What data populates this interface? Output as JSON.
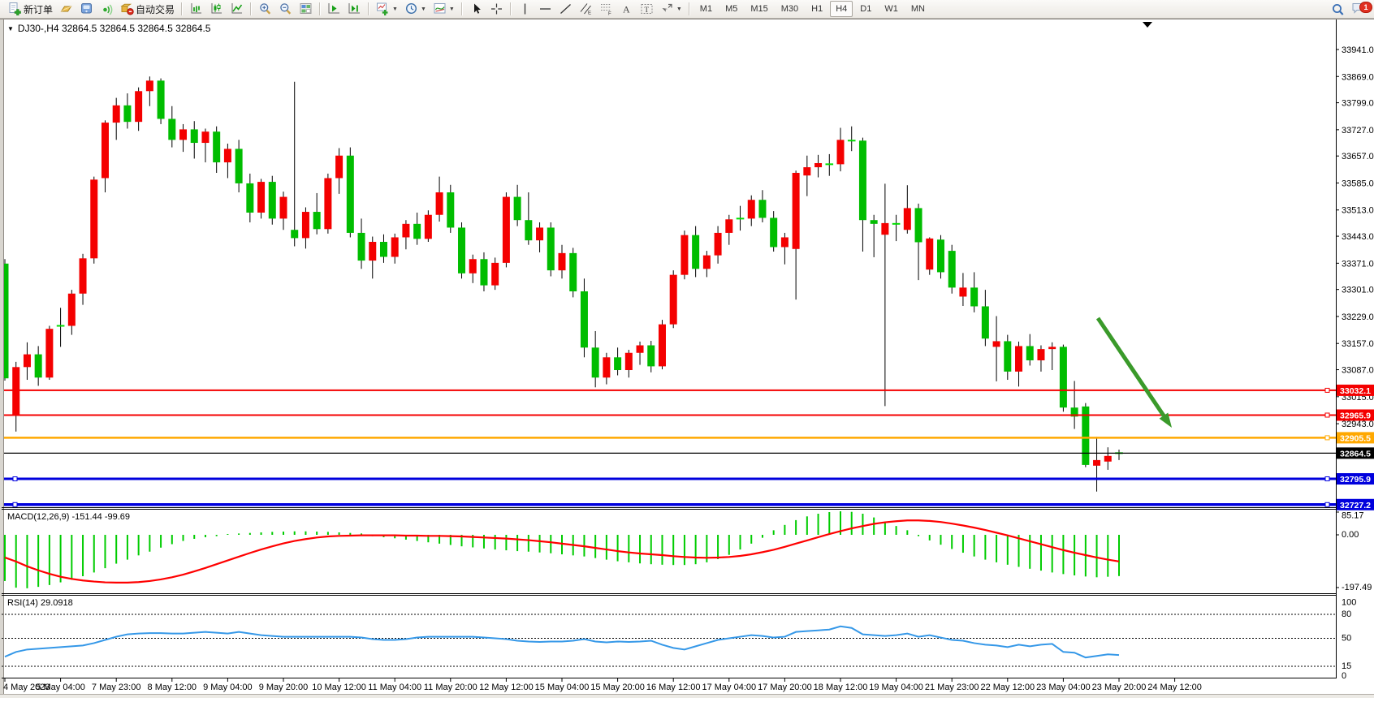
{
  "toolbar": {
    "groups": [
      {
        "items": [
          {
            "icon": "new-order",
            "label": "新订单"
          },
          {
            "icon": "gold-bar"
          },
          {
            "icon": "terminal"
          },
          {
            "icon": "signal"
          },
          {
            "icon": "autotrade",
            "label": "自动交易"
          }
        ]
      },
      {
        "items": [
          {
            "icon": "bars-chart"
          },
          {
            "icon": "candles-chart"
          },
          {
            "icon": "line-chart"
          }
        ]
      },
      {
        "items": [
          {
            "icon": "zoom-in"
          },
          {
            "icon": "zoom-out"
          },
          {
            "icon": "tile-windows"
          }
        ]
      },
      {
        "items": [
          {
            "icon": "chart-forward"
          },
          {
            "icon": "chart-shift"
          }
        ]
      },
      {
        "items": [
          {
            "icon": "new-chart",
            "dropdown": true
          },
          {
            "icon": "period",
            "dropdown": true
          },
          {
            "icon": "template",
            "dropdown": true
          }
        ]
      },
      {
        "items": [
          {
            "icon": "cursor"
          },
          {
            "icon": "crosshair"
          }
        ]
      },
      {
        "items": [
          {
            "icon": "vline"
          },
          {
            "icon": "hline"
          },
          {
            "icon": "trendline"
          },
          {
            "icon": "channel"
          },
          {
            "icon": "fibo"
          },
          {
            "icon": "text"
          },
          {
            "icon": "label"
          },
          {
            "icon": "arrows",
            "dropdown": true
          }
        ]
      },
      {
        "type": "timeframes",
        "items": [
          "M1",
          "M5",
          "M15",
          "M30",
          "H1",
          "H4",
          "D1",
          "W1",
          "MN"
        ],
        "active": "H4"
      }
    ],
    "right": [
      {
        "icon": "search"
      },
      {
        "icon": "chat",
        "badge": "1"
      }
    ]
  },
  "chart": {
    "title": "DJ30-,H4  32864.5 32864.5 32864.5 32864.5",
    "macd_label": "MACD(12,26,9) -151.44 -99.69",
    "rsi_label": "RSI(14) 29.0918"
  },
  "chart_data": {
    "type": "candlestick",
    "symbol": "DJ30-",
    "timeframe": "H4",
    "convention": "red = up candle, green = down candle (CN colors)",
    "price_axis": {
      "ticks": [
        33941.0,
        33869.0,
        33799.0,
        33727.0,
        33657.0,
        33585.0,
        33513.0,
        33443.0,
        33371.0,
        33301.0,
        33229.0,
        33157.0,
        33087.0,
        33015.0,
        32943.0
      ]
    },
    "current_price": {
      "value": 32864.5,
      "label": "32864.5",
      "badge_color": "#000000"
    },
    "hlines": [
      {
        "price": 33032.1,
        "label": "33032.1",
        "color": "#f40000",
        "width": 2,
        "left_handle": false
      },
      {
        "price": 32965.9,
        "label": "32965.9",
        "color": "#f40000",
        "width": 2,
        "left_handle": false
      },
      {
        "price": 32905.5,
        "label": "32905.5",
        "color": "#ffa800",
        "width": 2.5,
        "left_handle": false
      },
      {
        "price": 32795.9,
        "label": "32795.9",
        "color": "#0000dd",
        "width": 3,
        "left_handle": true
      },
      {
        "price": 32727.2,
        "label": "32727.2",
        "color": "#0000dd",
        "width": 3.5,
        "left_handle": true
      }
    ],
    "annotation_arrow": {
      "from": [
        1352,
        392
      ],
      "to": [
        1443,
        527
      ],
      "color": "#3a9a2a",
      "width": 5
    },
    "shift_marker_x": 1413,
    "time_axis": {
      "labels": [
        {
          "text": "4 May 2023",
          "i": 0
        },
        {
          "text": "5 May 04:00",
          "i": 5
        },
        {
          "text": "7 May 23:00",
          "i": 10
        },
        {
          "text": "8 May 12:00",
          "i": 15
        },
        {
          "text": "9 May 04:00",
          "i": 20
        },
        {
          "text": "9 May 20:00",
          "i": 25
        },
        {
          "text": "10 May 12:00",
          "i": 30
        },
        {
          "text": "11 May 04:00",
          "i": 35
        },
        {
          "text": "11 May 20:00",
          "i": 40
        },
        {
          "text": "12 May 12:00",
          "i": 45
        },
        {
          "text": "15 May 04:00",
          "i": 50
        },
        {
          "text": "15 May 20:00",
          "i": 55
        },
        {
          "text": "16 May 12:00",
          "i": 60
        },
        {
          "text": "17 May 04:00",
          "i": 65
        },
        {
          "text": "17 May 20:00",
          "i": 70
        },
        {
          "text": "18 May 12:00",
          "i": 75
        },
        {
          "text": "19 May 04:00",
          "i": 80
        },
        {
          "text": "21 May 23:00",
          "i": 85
        },
        {
          "text": "22 May 12:00",
          "i": 90
        },
        {
          "text": "23 May 04:00",
          "i": 95
        },
        {
          "text": "23 May 20:00",
          "i": 100
        },
        {
          "text": "24 May 12:00",
          "i": 105
        }
      ]
    },
    "candles": [
      [
        33370,
        33382,
        33058,
        33064
      ],
      [
        32965,
        33108,
        32922,
        33094
      ],
      [
        33094,
        33160,
        33060,
        33128
      ],
      [
        33128,
        33150,
        33044,
        33066
      ],
      [
        33066,
        33204,
        33060,
        33196
      ],
      [
        33200,
        33252,
        33148,
        33204
      ],
      [
        33204,
        33300,
        33180,
        33290
      ],
      [
        33290,
        33396,
        33260,
        33384
      ],
      [
        33384,
        33602,
        33370,
        33594
      ],
      [
        33598,
        33752,
        33560,
        33746
      ],
      [
        33746,
        33812,
        33700,
        33792
      ],
      [
        33792,
        33824,
        33730,
        33748
      ],
      [
        33748,
        33840,
        33724,
        33830
      ],
      [
        33830,
        33869,
        33790,
        33858
      ],
      [
        33858,
        33864,
        33742,
        33756
      ],
      [
        33756,
        33790,
        33680,
        33700
      ],
      [
        33700,
        33742,
        33668,
        33728
      ],
      [
        33728,
        33750,
        33650,
        33692
      ],
      [
        33692,
        33730,
        33640,
        33722
      ],
      [
        33722,
        33736,
        33612,
        33640
      ],
      [
        33640,
        33690,
        33598,
        33676
      ],
      [
        33676,
        33700,
        33560,
        33584
      ],
      [
        33584,
        33610,
        33480,
        33506
      ],
      [
        33506,
        33596,
        33490,
        33588
      ],
      [
        33588,
        33604,
        33474,
        33490
      ],
      [
        33490,
        33562,
        33460,
        33548
      ],
      [
        33460,
        33855,
        33416,
        33438
      ],
      [
        33438,
        33520,
        33410,
        33508
      ],
      [
        33508,
        33558,
        33448,
        33462
      ],
      [
        33462,
        33610,
        33450,
        33598
      ],
      [
        33598,
        33678,
        33556,
        33658
      ],
      [
        33658,
        33680,
        33440,
        33452
      ],
      [
        33452,
        33490,
        33356,
        33378
      ],
      [
        33378,
        33442,
        33330,
        33428
      ],
      [
        33428,
        33448,
        33372,
        33388
      ],
      [
        33388,
        33450,
        33370,
        33440
      ],
      [
        33440,
        33486,
        33408,
        33476
      ],
      [
        33476,
        33506,
        33420,
        33436
      ],
      [
        33436,
        33512,
        33428,
        33500
      ],
      [
        33500,
        33602,
        33482,
        33560
      ],
      [
        33560,
        33580,
        33452,
        33466
      ],
      [
        33466,
        33480,
        33330,
        33344
      ],
      [
        33344,
        33394,
        33318,
        33382
      ],
      [
        33382,
        33400,
        33296,
        33312
      ],
      [
        33312,
        33386,
        33300,
        33372
      ],
      [
        33372,
        33560,
        33360,
        33548
      ],
      [
        33548,
        33580,
        33470,
        33486
      ],
      [
        33486,
        33560,
        33420,
        33432
      ],
      [
        33432,
        33480,
        33400,
        33466
      ],
      [
        33466,
        33480,
        33336,
        33352
      ],
      [
        33352,
        33420,
        33330,
        33398
      ],
      [
        33398,
        33412,
        33280,
        33296
      ],
      [
        33296,
        33330,
        33120,
        33146
      ],
      [
        33146,
        33190,
        33040,
        33066
      ],
      [
        33066,
        33132,
        33048,
        33120
      ],
      [
        33120,
        33146,
        33072,
        33086
      ],
      [
        33086,
        33140,
        33066,
        33132
      ],
      [
        33132,
        33162,
        33100,
        33152
      ],
      [
        33152,
        33164,
        33080,
        33096
      ],
      [
        33096,
        33220,
        33088,
        33208
      ],
      [
        33208,
        33352,
        33198,
        33340
      ],
      [
        33340,
        33458,
        33328,
        33446
      ],
      [
        33446,
        33470,
        33334,
        33356
      ],
      [
        33356,
        33404,
        33334,
        33392
      ],
      [
        33392,
        33470,
        33370,
        33452
      ],
      [
        33452,
        33500,
        33420,
        33488
      ],
      [
        33488,
        33524,
        33458,
        33490
      ],
      [
        33490,
        33552,
        33470,
        33540
      ],
      [
        33540,
        33566,
        33480,
        33492
      ],
      [
        33492,
        33510,
        33402,
        33414
      ],
      [
        33414,
        33452,
        33368,
        33440
      ],
      [
        33409,
        33618,
        33274,
        33612
      ],
      [
        33605,
        33658,
        33550,
        33627
      ],
      [
        33627,
        33660,
        33600,
        33638
      ],
      [
        33637,
        33662,
        33604,
        33635
      ],
      [
        33635,
        33732,
        33616,
        33700
      ],
      [
        33700,
        33736,
        33670,
        33698
      ],
      [
        33698,
        33706,
        33402,
        33486
      ],
      [
        33486,
        33500,
        33387,
        33476
      ],
      [
        33447,
        33583,
        32990,
        33478
      ],
      [
        33478,
        33500,
        33430,
        33476
      ],
      [
        33460,
        33579,
        33450,
        33518
      ],
      [
        33518,
        33530,
        33326,
        33427
      ],
      [
        33354,
        33440,
        33340,
        33437
      ],
      [
        33434,
        33446,
        33330,
        33347
      ],
      [
        33404,
        33420,
        33290,
        33306
      ],
      [
        33282,
        33345,
        33257,
        33306
      ],
      [
        33306,
        33347,
        33240,
        33256
      ],
      [
        33256,
        33300,
        33150,
        33170
      ],
      [
        33148,
        33230,
        33056,
        33163
      ],
      [
        33163,
        33180,
        33060,
        33082
      ],
      [
        33082,
        33162,
        33042,
        33150
      ],
      [
        33150,
        33182,
        33098,
        33112
      ],
      [
        33112,
        33152,
        33082,
        33142
      ],
      [
        33142,
        33160,
        33086,
        33148
      ],
      [
        33148,
        33154,
        32975,
        32986
      ],
      [
        32986,
        33057,
        32929,
        32962
      ],
      [
        32989,
        32998,
        32827,
        32833
      ],
      [
        32831,
        32908,
        32762,
        32846
      ],
      [
        32842,
        32880,
        32820,
        32857
      ],
      [
        32862,
        32874,
        32846,
        32864.5
      ]
    ],
    "macd": {
      "label": "MACD(12,26,9) -151.44 -99.69",
      "axis_labels": [
        {
          "text": "85.17",
          "v": 85.17
        },
        {
          "text": "0.00",
          "v": 0
        },
        {
          "text": "-197.49",
          "v": -197.49
        }
      ],
      "histogram": [
        -170,
        -195,
        -197,
        -192,
        -185,
        -175,
        -165,
        -152,
        -138,
        -122,
        -105,
        -90,
        -74,
        -60,
        -45,
        -32,
        -20,
        -12,
        -6,
        -2,
        0,
        2,
        4,
        6,
        8,
        9,
        10,
        10,
        9,
        8,
        6,
        4,
        2,
        -2,
        -6,
        -10,
        -15,
        -20,
        -25,
        -30,
        -35,
        -40,
        -44,
        -48,
        -52,
        -55,
        -58,
        -60,
        -63,
        -66,
        -70,
        -74,
        -78,
        -84,
        -90,
        -96,
        -100,
        -104,
        -107,
        -109,
        -110,
        -110,
        -107,
        -100,
        -88,
        -72,
        -52,
        -30,
        -8,
        14,
        34,
        52,
        66,
        76,
        82,
        85,
        83,
        76,
        62,
        46,
        30,
        14,
        -2,
        -18,
        -34,
        -50,
        -64,
        -78,
        -90,
        -100,
        -109,
        -117,
        -124,
        -131,
        -138,
        -144,
        -149,
        -153,
        -156,
        -154,
        -151.44
      ],
      "signal": [
        -85,
        -100,
        -118,
        -133,
        -146,
        -157,
        -165,
        -171,
        -175,
        -178,
        -179,
        -179,
        -177,
        -173,
        -167,
        -159,
        -149,
        -137,
        -124,
        -110,
        -96,
        -82,
        -68,
        -55,
        -43,
        -32,
        -23,
        -16,
        -10,
        -6,
        -4,
        -3,
        -2,
        -2,
        -2,
        -2,
        -3,
        -3,
        -4,
        -4,
        -5,
        -6,
        -8,
        -10,
        -12,
        -14,
        -17,
        -20,
        -24,
        -28,
        -33,
        -38,
        -43,
        -49,
        -55,
        -61,
        -66,
        -70,
        -73,
        -76,
        -80,
        -83,
        -85,
        -86,
        -85,
        -83,
        -79,
        -73,
        -65,
        -56,
        -45,
        -33,
        -21,
        -9,
        3,
        14,
        24,
        33,
        41,
        47,
        51,
        54,
        54,
        52,
        48,
        42,
        35,
        27,
        18,
        8,
        -2,
        -13,
        -24,
        -35,
        -46,
        -57,
        -67,
        -76,
        -85,
        -93,
        -99.69
      ]
    },
    "rsi": {
      "label": "RSI(14) 29.0918",
      "levels": [
        80,
        50,
        15
      ],
      "axis_labels": [
        {
          "text": "100",
          "v": 100
        },
        {
          "text": "80",
          "v": 80
        },
        {
          "text": "50",
          "v": 50
        },
        {
          "text": "15",
          "v": 15
        },
        {
          "text": "0",
          "v": 0
        }
      ],
      "series": [
        27,
        33,
        36,
        37,
        38,
        39,
        40,
        41,
        44,
        48,
        52,
        55,
        56,
        56.5,
        56.5,
        56,
        56,
        57,
        58,
        57,
        56,
        58,
        56,
        54,
        53,
        52,
        52,
        52,
        52,
        52,
        52,
        52,
        51,
        49,
        48,
        48,
        49,
        51,
        52,
        52,
        52,
        52,
        52,
        51,
        50,
        49,
        47,
        46,
        45.5,
        46,
        46,
        47,
        49,
        46,
        45,
        46,
        45.5,
        46,
        47,
        42,
        38,
        36,
        40,
        44,
        48,
        50,
        52,
        54,
        53,
        51,
        52,
        58,
        59,
        60,
        61,
        65,
        63,
        55,
        54,
        53,
        54,
        56,
        52,
        54,
        51,
        48,
        47,
        44,
        42,
        41,
        39,
        42,
        40,
        42,
        43,
        33,
        32,
        26,
        28,
        30,
        29.09
      ]
    },
    "colors": {
      "up": "#f40000",
      "down": "#00bd00",
      "doji": "#00dd00",
      "wick": "#000000",
      "macd_hist": "#00cc00",
      "macd_signal": "#ff0000",
      "rsi_line": "#3598e8"
    }
  }
}
